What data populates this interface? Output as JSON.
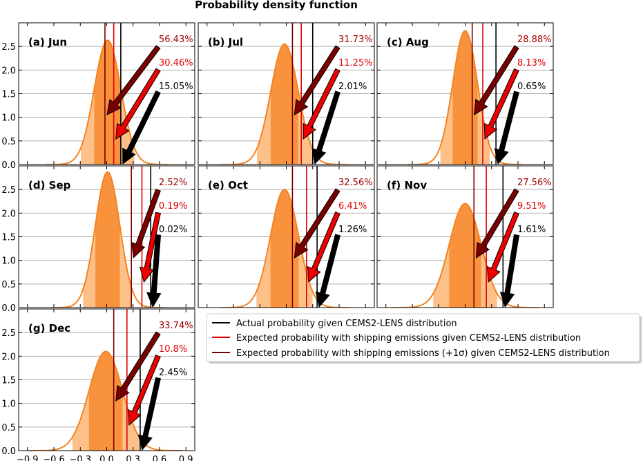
{
  "figure_title": "Probability density function",
  "colors": {
    "actual": "#000000",
    "expected": "#e00000",
    "expected_sigma": "#7a0000",
    "density_line": "#f58220",
    "shade_outer": "#fdc089",
    "shade_inner": "#f9923c",
    "grid": "#b0b0b0"
  },
  "chart_data": {
    "type": "area",
    "xlim": [
      -1.0,
      1.0
    ],
    "ylim": [
      0,
      3.0
    ],
    "x_ticks": [
      -0.9,
      -0.6,
      -0.3,
      0.0,
      0.3,
      0.6,
      0.9
    ],
    "x_tick_labels": [
      "−0.9",
      "−0.6",
      "−0.3",
      "0.0",
      "0.3",
      "0.6",
      "0.9"
    ],
    "y_ticks": [
      0.0,
      0.5,
      1.0,
      1.5,
      2.0,
      2.5
    ],
    "y_tick_labels": [
      "0.0",
      "0.5",
      "1.0",
      "1.5",
      "2.0",
      "2.5"
    ],
    "grid": "horizontal",
    "legend": {
      "placement": "middle-right",
      "entries": [
        {
          "label": "Actual probability given CEMS2-LENS distribution",
          "color": "#000000"
        },
        {
          "label": "Expected probability with shipping emissions given CEMS2-LENS distribution",
          "color": "#e00000"
        },
        {
          "label": "Expected probability with shipping emissions (+1σ) given CEMS2-LENS distribution",
          "color": "#7a0000"
        }
      ]
    },
    "panels": [
      {
        "label": "(a) Jun",
        "mean": 0.01,
        "peak": 2.63,
        "sigma_line": -0.02,
        "expected_line": 0.08,
        "actual_line": 0.16,
        "pct_sigma": "56.43%",
        "pct_expected": "30.46%",
        "pct_actual": "15.05%"
      },
      {
        "label": "(b) Jul",
        "mean": -0.02,
        "peak": 2.55,
        "sigma_line": 0.07,
        "expected_line": 0.17,
        "actual_line": 0.3,
        "pct_sigma": "31.73%",
        "pct_expected": "11.25%",
        "pct_actual": "2.01%"
      },
      {
        "label": "(c) Aug",
        "mean": 0.0,
        "peak": 2.83,
        "sigma_line": 0.08,
        "expected_line": 0.2,
        "actual_line": 0.35,
        "pct_sigma": "28.88%",
        "pct_expected": "8.13%",
        "pct_actual": "0.65%"
      },
      {
        "label": "(d) Sep",
        "mean": 0.01,
        "peak": 2.87,
        "sigma_line": 0.28,
        "expected_line": 0.4,
        "actual_line": 0.5,
        "pct_sigma": "2.52%",
        "pct_expected": "0.19%",
        "pct_actual": "0.02%"
      },
      {
        "label": "(e) Oct",
        "mean": -0.02,
        "peak": 2.5,
        "sigma_line": 0.07,
        "expected_line": 0.23,
        "actual_line": 0.35,
        "pct_sigma": "32.56%",
        "pct_expected": "6.41%",
        "pct_actual": "1.26%"
      },
      {
        "label": "(f) Nov",
        "mean": 0.0,
        "peak": 2.2,
        "sigma_line": 0.1,
        "expected_line": 0.24,
        "actual_line": 0.43,
        "pct_sigma": "27.56%",
        "pct_expected": "9.51%",
        "pct_actual": "1.61%"
      },
      {
        "label": "(g) Dec",
        "mean": -0.01,
        "peak": 2.1,
        "sigma_line": 0.08,
        "expected_line": 0.23,
        "actual_line": 0.38,
        "pct_sigma": "33.74%",
        "pct_expected": "10.8%",
        "pct_actual": "2.45%"
      }
    ]
  }
}
